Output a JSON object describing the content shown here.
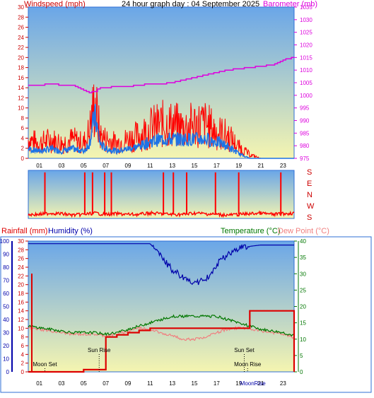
{
  "title": "24 hour graph day : 04 September 2025",
  "colors": {
    "wind": "#ff0000",
    "gust_avg": "#1e73e6",
    "baro": "#dd00dd",
    "humidity": "#0000aa",
    "temperature": "#007700",
    "dewpoint": "#f08080",
    "rainfall": "#dd0000",
    "axis_red": "#cc0000",
    "axis_blue": "#0000aa",
    "axis_green": "#007700",
    "sky_top": "#6aa6e8",
    "sky_bottom": "#f5f5b0"
  },
  "chart_data": [
    {
      "type": "line",
      "name": "wind-barometer",
      "ylabel_left": "Windspeed (mph)",
      "ylabel_right": "Barometer (mb)",
      "x_ticks": [
        "01",
        "03",
        "05",
        "07",
        "09",
        "11",
        "13",
        "15",
        "17",
        "19",
        "21",
        "23"
      ],
      "ylim_left": [
        0,
        30
      ],
      "yticks_left": [
        "0",
        "2",
        "4",
        "6",
        "8",
        "10",
        "12",
        "14",
        "16",
        "18",
        "20",
        "22",
        "24",
        "26",
        "28",
        "30"
      ],
      "ylim_right": [
        975,
        1035
      ],
      "yticks_right": [
        "975",
        "980",
        "985",
        "990",
        "995",
        "1000",
        "1005",
        "1010",
        "1015",
        "1020",
        "1025",
        "1030",
        "1035"
      ],
      "x_hours": [
        0,
        1,
        2,
        3,
        4,
        5,
        5.5,
        6,
        6.5,
        7,
        8,
        9,
        10,
        11,
        12,
        13,
        14,
        15,
        16,
        17,
        18,
        19,
        20,
        21,
        22,
        23,
        24
      ],
      "wind_upper": [
        5,
        4,
        5,
        4,
        5,
        4,
        7,
        15,
        6,
        5,
        4,
        5,
        6,
        8,
        9,
        9,
        8,
        9,
        9,
        7,
        6,
        3,
        1,
        0,
        0,
        0,
        0
      ],
      "wind_avg": [
        2,
        1.5,
        2,
        1.5,
        2,
        1.5,
        3,
        9,
        3,
        2,
        1.5,
        2,
        2.5,
        3.5,
        4,
        4,
        4,
        4,
        4,
        3.5,
        2.5,
        1,
        0,
        0,
        0,
        0,
        0
      ],
      "barometer": [
        1004,
        1004,
        1004.5,
        1004,
        1004,
        1002,
        1001,
        1001.5,
        1003,
        1003,
        1003.5,
        1003.5,
        1004,
        1004.5,
        1004.5,
        1005,
        1006,
        1007,
        1008,
        1009,
        1010,
        1010.5,
        1011,
        1011.5,
        1012,
        1014,
        1015
      ]
    },
    {
      "type": "line",
      "name": "wind-direction",
      "ylabels": [
        "S",
        "E",
        "N",
        "W",
        "S"
      ],
      "x_hours": [
        0,
        1,
        2,
        3,
        4,
        5,
        6,
        7,
        8,
        9,
        10,
        11,
        12,
        13,
        14,
        15,
        16,
        17,
        18,
        19,
        20,
        21,
        22,
        23,
        24
      ],
      "direction_deg": [
        330,
        330,
        320,
        325,
        335,
        330,
        320,
        330,
        325,
        330,
        330,
        320,
        325,
        330,
        330,
        320,
        325,
        330,
        335,
        330,
        325,
        320,
        330,
        325,
        320
      ],
      "spikes_at_hours": [
        1.5,
        5.1,
        5.8,
        6.9,
        7.5,
        12.2,
        13.1,
        14.3,
        16.9,
        19.0,
        22.8
      ]
    },
    {
      "type": "line",
      "name": "rain-humidity-temperature",
      "ylabel_left_1": "Rainfall (mm)",
      "ylabel_left_2": "Humidity (%)",
      "ylabel_right_1": "Temperature (°C)",
      "ylabel_right_2": "Dew Point (°C)",
      "x_ticks": [
        "01",
        "03",
        "05",
        "07",
        "09",
        "11",
        "13",
        "15",
        "17",
        "19",
        "21",
        "23"
      ],
      "yticks_humidity": [
        "0",
        "10",
        "20",
        "30",
        "40",
        "50",
        "60",
        "70",
        "80",
        "90",
        "100"
      ],
      "yticks_rain": [
        "0",
        "2",
        "4",
        "6",
        "8",
        "10",
        "12",
        "14",
        "16",
        "18",
        "20",
        "22",
        "24",
        "26",
        "28",
        "30"
      ],
      "yticks_temp": [
        "0",
        "5",
        "10",
        "15",
        "20",
        "25",
        "30",
        "35",
        "40"
      ],
      "ylim_humidity": [
        0,
        100
      ],
      "ylim_rain": [
        0,
        30
      ],
      "ylim_temp": [
        0,
        40
      ],
      "x_hours": [
        0,
        1,
        2,
        3,
        4,
        5,
        6,
        7,
        8,
        9,
        10,
        11,
        12,
        13,
        14,
        15,
        16,
        17,
        18,
        19,
        20,
        21,
        22,
        23,
        24
      ],
      "humidity": [
        98,
        98,
        98,
        98,
        98,
        98,
        98,
        98,
        98,
        98,
        98,
        98,
        88,
        78,
        72,
        68,
        70,
        82,
        90,
        95,
        96,
        97,
        97,
        97,
        97
      ],
      "temperature": [
        14,
        13.5,
        13,
        12.5,
        12,
        12,
        12,
        11.5,
        12,
        13,
        14,
        15,
        16,
        17,
        17,
        17,
        17,
        17,
        16,
        15,
        14,
        13,
        12.5,
        12,
        11
      ],
      "dewpoint": [
        13.5,
        13,
        12.5,
        12,
        11.5,
        11.5,
        11.5,
        11,
        11.5,
        12.5,
        13.5,
        13,
        12,
        11,
        10,
        10,
        10.5,
        12,
        13,
        13.5,
        13,
        12.5,
        12,
        11.5,
        10.5
      ],
      "rainfall": [
        0,
        0,
        0,
        0,
        0,
        0.5,
        0.5,
        8,
        8.5,
        9,
        9.5,
        10,
        10,
        10,
        10,
        10,
        10,
        10,
        10,
        10,
        14,
        14,
        14,
        14,
        0
      ],
      "rain_sticks_hours": [
        0,
        24
      ],
      "annotations": [
        {
          "text": "Moon Set",
          "hour": 1.5,
          "level": "low"
        },
        {
          "text": "Sun Rise",
          "hour": 6.4,
          "level": "mid"
        },
        {
          "text": "Sun Set",
          "hour": 19.5,
          "level": "mid"
        },
        {
          "text": "Moon Rise",
          "hour": 19.8,
          "level": "low"
        },
        {
          "text": "MoonRise",
          "hour": 19.0,
          "level": "axis"
        }
      ]
    }
  ]
}
